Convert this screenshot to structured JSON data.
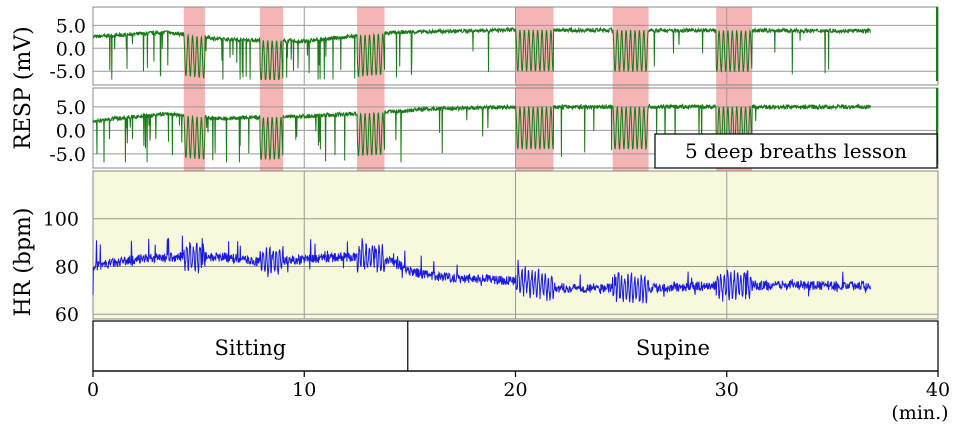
{
  "chart_data": {
    "type": "line",
    "x_axis": {
      "ticks": [
        0,
        10,
        20,
        30,
        40
      ],
      "unit_label": "(min.)",
      "range": [
        0,
        40
      ]
    },
    "lesson_label": "5 deep breaths lesson",
    "lesson_color": "#f4a8a8",
    "lesson_intervals": [
      [
        4.3,
        5.3
      ],
      [
        7.9,
        9.0
      ],
      [
        12.5,
        13.8
      ],
      [
        20.0,
        21.8
      ],
      [
        24.6,
        26.3
      ],
      [
        29.5,
        31.2
      ]
    ],
    "phases": [
      {
        "label": "Sitting",
        "start": 0,
        "end": 14.9
      },
      {
        "label": "Supine",
        "start": 14.9,
        "end": 40
      }
    ],
    "resp_label": "RESP (mV)",
    "resp_ticks": [
      5.0,
      0.0,
      -5.0
    ],
    "resp_tick_labels": [
      "5.0",
      "0.0",
      "-5.0"
    ],
    "resp_ylim": [
      -8,
      9
    ],
    "resp_color": "#1a7a1a",
    "resp_series": [
      {
        "baseline": [
          [
            0,
            2.5
          ],
          [
            3.5,
            3.5
          ],
          [
            6,
            2.0
          ],
          [
            10,
            1.5
          ],
          [
            13,
            3.0
          ],
          [
            14.5,
            3.5
          ],
          [
            20,
            4.0
          ],
          [
            37,
            3.8
          ]
        ],
        "end": 36.8
      },
      {
        "baseline": [
          [
            0,
            2.0
          ],
          [
            3.5,
            3.5
          ],
          [
            6,
            2.5
          ],
          [
            10,
            3.0
          ],
          [
            14.5,
            4.0
          ],
          [
            15.5,
            4.5
          ],
          [
            20,
            5.0
          ],
          [
            37,
            5.0
          ]
        ],
        "end": 36.8
      }
    ],
    "hr_label": "HR (bpm)",
    "hr_ticks": [
      100,
      80,
      60
    ],
    "hr_ylim": [
      58,
      120
    ],
    "hr_color": "#1a1ae0",
    "hr_background": "#f7f8dc",
    "hr_series": {
      "end": 36.8,
      "trend": [
        [
          0,
          80
        ],
        [
          2,
          83
        ],
        [
          4,
          84
        ],
        [
          6,
          84
        ],
        [
          8,
          82
        ],
        [
          10,
          83
        ],
        [
          12,
          84
        ],
        [
          14,
          83
        ],
        [
          15,
          78
        ],
        [
          16,
          76
        ],
        [
          18,
          75
        ],
        [
          20,
          74
        ],
        [
          21,
          73
        ],
        [
          22,
          71
        ],
        [
          26,
          71
        ],
        [
          30,
          72
        ],
        [
          34,
          72
        ],
        [
          36.8,
          72
        ]
      ]
    }
  }
}
